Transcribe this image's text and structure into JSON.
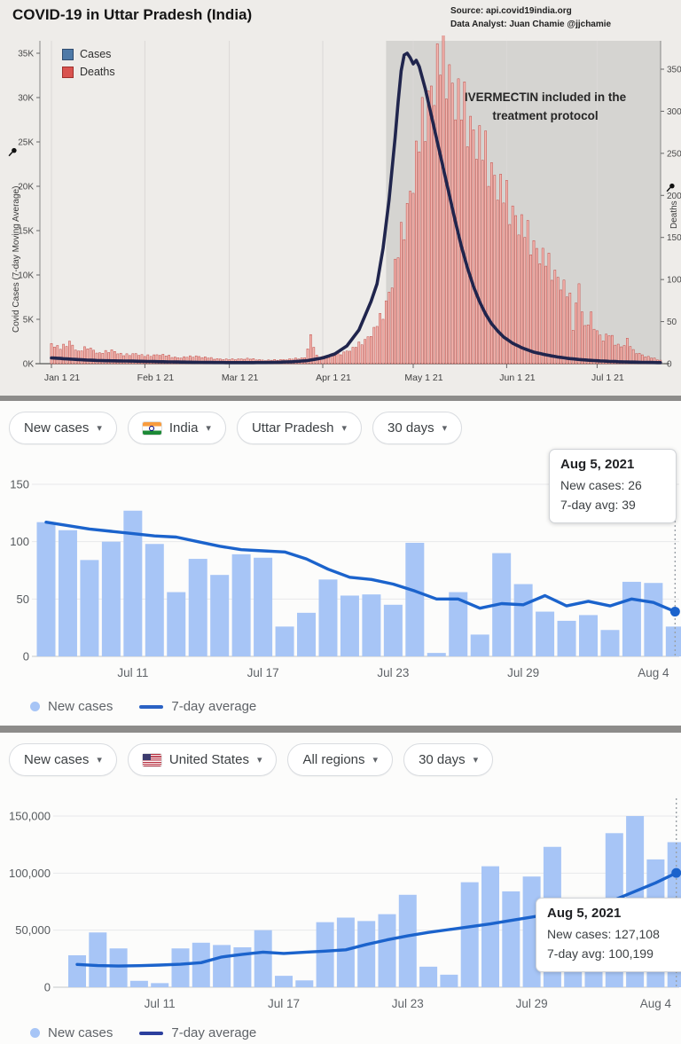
{
  "header": {
    "title": "COVID-19 in Uttar Pradesh (India)",
    "source_line1": "Source: api.covid19india.org",
    "source_line2": "Data Analyst:  Juan Chamie @jjchamie"
  },
  "top": {
    "legend_cases": "Cases",
    "legend_deaths": "Deaths",
    "annotation_line1": "IVERMECTIN included in the",
    "annotation_line2": "treatment protocol",
    "y_left_label": "Covid Cases (7-day Moving Average)",
    "y_right_label": "Deaths"
  },
  "india": {
    "filters": [
      {
        "label": "New cases"
      },
      {
        "label": "India"
      },
      {
        "label": "Uttar Pradesh"
      },
      {
        "label": "30 days"
      }
    ],
    "tooltip": {
      "date": "Aug 5, 2021",
      "cases": "New cases: 26",
      "avg": "7-day avg: 39"
    },
    "legend": {
      "cases": "New cases",
      "avg": "7-day average"
    }
  },
  "us": {
    "filters": [
      {
        "label": "New cases"
      },
      {
        "label": "United States"
      },
      {
        "label": "All regions"
      },
      {
        "label": "30 days"
      }
    ],
    "tooltip": {
      "date": "Aug 5, 2021",
      "cases": "New cases: 127,108",
      "avg": "7-day avg: 100,199"
    },
    "legend": {
      "cases": "New cases",
      "avg": "7-day average"
    }
  },
  "chart_data": [
    {
      "type": "combo-bar-line",
      "title": "COVID-19 in Uttar Pradesh (India)",
      "left_axis_label": "Covid Cases (7-day Moving Average)",
      "right_axis_label": "Deaths",
      "left_ticks": [
        "0K",
        "5K",
        "10K",
        "15K",
        "20K",
        "25K",
        "30K",
        "35K"
      ],
      "right_ticks": [
        "0",
        "50",
        "100",
        "150",
        "200",
        "250",
        "300",
        "350"
      ],
      "left_range": [
        0,
        35000
      ],
      "right_range": [
        0,
        350
      ],
      "x_ticks": [
        "Jan 1 21",
        "Feb 1 21",
        "Mar 1 21",
        "Apr 1 21",
        "May 1 21",
        "Jun 1 21",
        "Jul 1 21"
      ],
      "x_tick_days": [
        0,
        31,
        59,
        90,
        120,
        151,
        181
      ],
      "days_total": 203,
      "annotation": "IVERMECTIN included in the treatment protocol",
      "shaded_region_start_day": 111,
      "legend": [
        "Cases",
        "Deaths"
      ],
      "cases_line_anchors": [
        [
          0,
          650
        ],
        [
          6,
          520
        ],
        [
          12,
          400
        ],
        [
          18,
          330
        ],
        [
          25,
          300
        ],
        [
          31,
          260
        ],
        [
          38,
          210
        ],
        [
          45,
          170
        ],
        [
          52,
          140
        ],
        [
          59,
          120
        ],
        [
          66,
          120
        ],
        [
          73,
          140
        ],
        [
          80,
          220
        ],
        [
          85,
          350
        ],
        [
          90,
          650
        ],
        [
          94,
          1100
        ],
        [
          98,
          2000
        ],
        [
          102,
          3800
        ],
        [
          106,
          7000
        ],
        [
          108,
          9000
        ],
        [
          110,
          13000
        ],
        [
          112,
          18500
        ],
        [
          114,
          25500
        ],
        [
          115,
          29500
        ],
        [
          116,
          33000
        ],
        [
          117,
          34800
        ],
        [
          118,
          35000
        ],
        [
          119,
          34500
        ],
        [
          120,
          33800
        ],
        [
          121,
          34200
        ],
        [
          122,
          33500
        ],
        [
          124,
          31000
        ],
        [
          126,
          28000
        ],
        [
          128,
          25000
        ],
        [
          130,
          22000
        ],
        [
          132,
          19000
        ],
        [
          134,
          16000
        ],
        [
          136,
          13200
        ],
        [
          138,
          10800
        ],
        [
          140,
          8700
        ],
        [
          142,
          7000
        ],
        [
          144,
          5600
        ],
        [
          146,
          4500
        ],
        [
          148,
          3700
        ],
        [
          150,
          3000
        ],
        [
          153,
          2300
        ],
        [
          156,
          1800
        ],
        [
          160,
          1300
        ],
        [
          164,
          1000
        ],
        [
          168,
          750
        ],
        [
          172,
          570
        ],
        [
          176,
          440
        ],
        [
          180,
          350
        ],
        [
          185,
          260
        ],
        [
          190,
          200
        ],
        [
          195,
          160
        ],
        [
          200,
          130
        ],
        [
          202,
          120
        ]
      ],
      "deaths_bar_anchors": [
        [
          0,
          24
        ],
        [
          3,
          18
        ],
        [
          6,
          26
        ],
        [
          9,
          14
        ],
        [
          12,
          20
        ],
        [
          16,
          12
        ],
        [
          20,
          16
        ],
        [
          24,
          10
        ],
        [
          28,
          12
        ],
        [
          31,
          9
        ],
        [
          36,
          11
        ],
        [
          42,
          7
        ],
        [
          48,
          9
        ],
        [
          54,
          6
        ],
        [
          59,
          5
        ],
        [
          65,
          6
        ],
        [
          71,
          4
        ],
        [
          78,
          5
        ],
        [
          84,
          7
        ],
        [
          86,
          32
        ],
        [
          88,
          9
        ],
        [
          92,
          8
        ],
        [
          96,
          12
        ],
        [
          100,
          18
        ],
        [
          104,
          28
        ],
        [
          107,
          40
        ],
        [
          110,
          60
        ],
        [
          112,
          85
        ],
        [
          114,
          115
        ],
        [
          116,
          150
        ],
        [
          118,
          185
        ],
        [
          120,
          225
        ],
        [
          122,
          265
        ],
        [
          124,
          300
        ],
        [
          126,
          330
        ],
        [
          128,
          352
        ],
        [
          130,
          370
        ],
        [
          132,
          345
        ],
        [
          134,
          322
        ],
        [
          136,
          305
        ],
        [
          138,
          293
        ],
        [
          140,
          278
        ],
        [
          142,
          262
        ],
        [
          144,
          247
        ],
        [
          146,
          232
        ],
        [
          148,
          216
        ],
        [
          150,
          201
        ],
        [
          152,
          188
        ],
        [
          155,
          170
        ],
        [
          158,
          152
        ],
        [
          161,
          137
        ],
        [
          164,
          122
        ],
        [
          167,
          108
        ],
        [
          170,
          92
        ],
        [
          172,
          75
        ],
        [
          173,
          45
        ],
        [
          175,
          95
        ],
        [
          177,
          42
        ],
        [
          179,
          55
        ],
        [
          181,
          38
        ],
        [
          183,
          30
        ],
        [
          185,
          35
        ],
        [
          187,
          25
        ],
        [
          189,
          20
        ],
        [
          191,
          28
        ],
        [
          193,
          15
        ],
        [
          195,
          12
        ],
        [
          197,
          9
        ],
        [
          199,
          7
        ],
        [
          201,
          5
        ],
        [
          202,
          4
        ]
      ]
    },
    {
      "type": "bar+line",
      "region": "Uttar Pradesh, India",
      "window": "30 days",
      "y_ticks": [
        0,
        50,
        100,
        150
      ],
      "y_tick_labels": [
        "0",
        "50",
        "100",
        "150"
      ],
      "ylim": [
        0,
        158
      ],
      "x_tick_labels": [
        "Jul 11",
        "Jul 17",
        "Jul 23",
        "Jul 29",
        "Aug 4"
      ],
      "x_tick_days": [
        4,
        10,
        16,
        22,
        28
      ],
      "new_cases": [
        117,
        110,
        84,
        100,
        127,
        98,
        56,
        85,
        71,
        89,
        86,
        26,
        38,
        67,
        53,
        54,
        45,
        99,
        3,
        56,
        19,
        90,
        63,
        39,
        31,
        36,
        23,
        65,
        64,
        26
      ],
      "seven_day_avg": [
        117,
        114,
        111,
        109,
        107,
        105,
        104,
        100,
        96,
        93,
        92,
        91,
        85,
        76,
        69,
        67,
        63,
        57,
        50,
        50,
        42,
        46,
        45,
        53,
        44,
        48,
        44,
        50,
        47,
        39
      ],
      "end_label_date": "Aug 5, 2021",
      "end_new_cases": 26,
      "end_seven_day_avg": 39,
      "legend": [
        "New cases",
        "7-day average"
      ]
    },
    {
      "type": "bar+line",
      "region": "United States, All regions",
      "window": "30 days",
      "y_ticks": [
        0,
        50000,
        100000,
        150000
      ],
      "y_tick_labels": [
        "0",
        "50,000",
        "100,000",
        "150,000"
      ],
      "ylim": [
        0,
        165000
      ],
      "x_tick_labels": [
        "Jul 11",
        "Jul 17",
        "Jul 23",
        "Jul 29",
        "Aug 4"
      ],
      "x_tick_days": [
        4,
        10,
        16,
        22,
        28
      ],
      "new_cases": [
        28000,
        48000,
        34000,
        5600,
        3600,
        34000,
        39000,
        37000,
        35000,
        50000,
        10000,
        6000,
        57000,
        61000,
        58000,
        64000,
        81000,
        18000,
        11000,
        92000,
        106000,
        84000,
        97000,
        123000,
        58000,
        34000,
        135000,
        150000,
        112000,
        127108
      ],
      "seven_day_avg": [
        20000,
        19000,
        18600,
        18900,
        19400,
        20100,
        21500,
        26500,
        28800,
        30800,
        29600,
        30600,
        31600,
        32800,
        37500,
        41500,
        45000,
        48000,
        50500,
        53000,
        55500,
        58500,
        61500,
        64500,
        67500,
        70500,
        76500,
        84000,
        91500,
        100199
      ],
      "end_label_date": "Aug 5, 2021",
      "end_new_cases": 127108,
      "end_seven_day_avg": 100199,
      "legend": [
        "New cases",
        "7-day average"
      ]
    }
  ]
}
